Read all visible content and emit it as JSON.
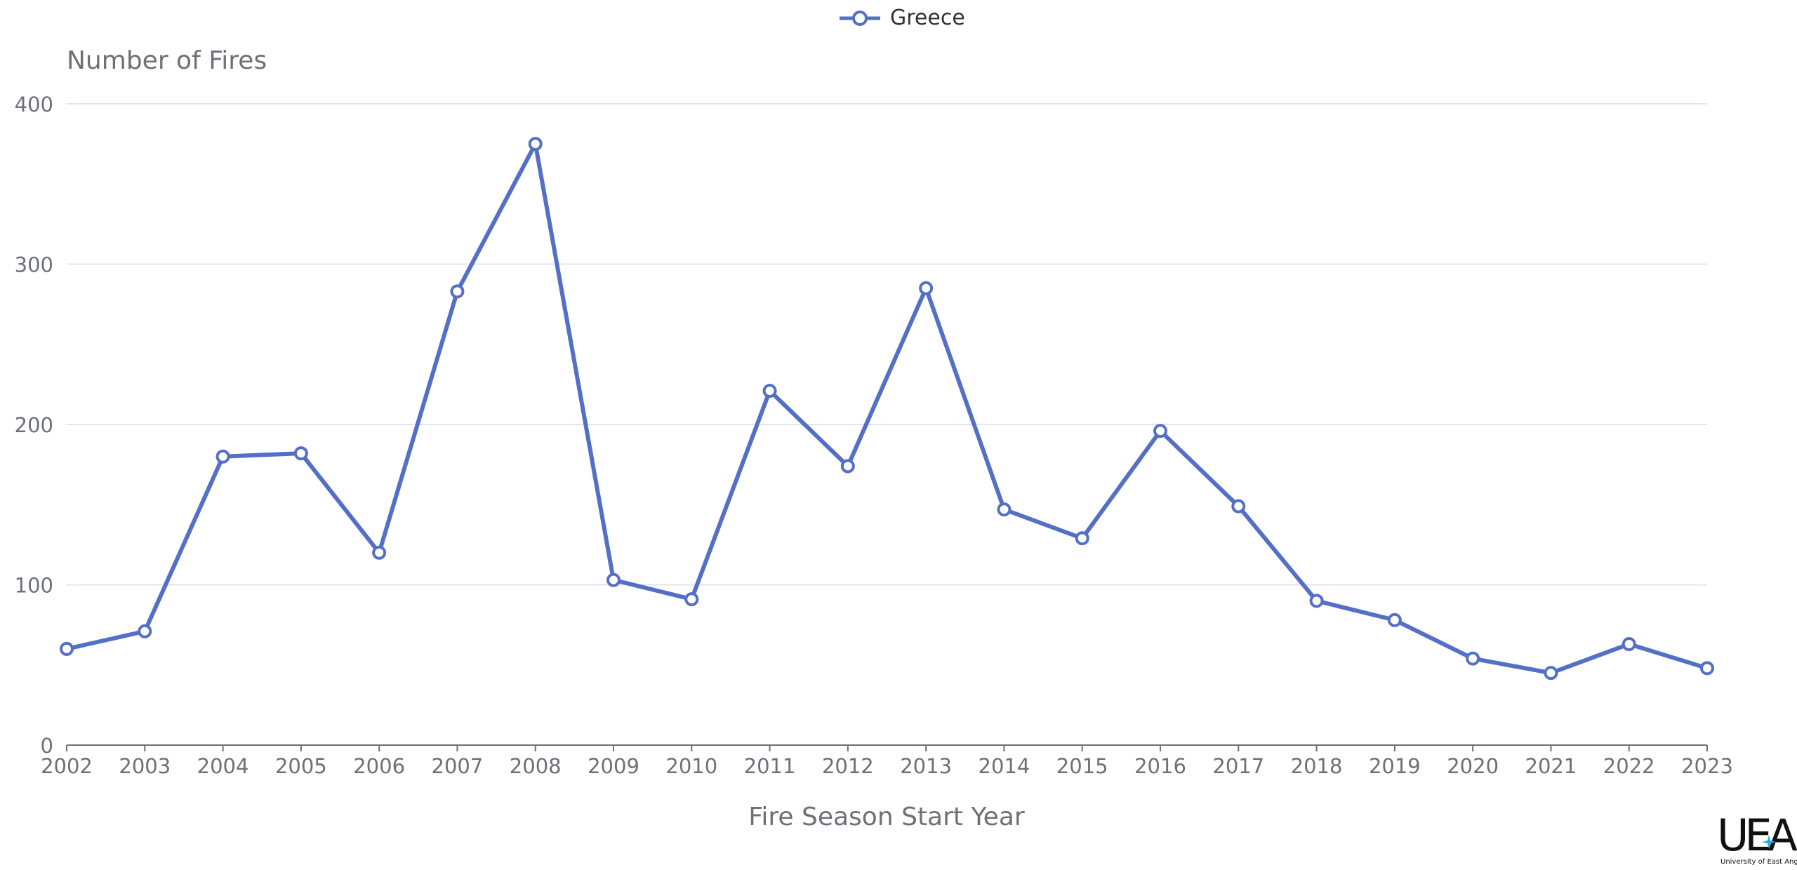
{
  "chart_data": {
    "type": "line",
    "title": "",
    "xlabel": "Fire Season Start Year",
    "ylabel": "Number of Fires",
    "ylim": [
      0,
      400
    ],
    "y_ticks": [
      "0",
      "100",
      "200",
      "300",
      "400"
    ],
    "grid": true,
    "legend_position": "top-center",
    "categories": [
      "2002",
      "2003",
      "2004",
      "2005",
      "2006",
      "2007",
      "2008",
      "2009",
      "2010",
      "2011",
      "2012",
      "2013",
      "2014",
      "2015",
      "2016",
      "2017",
      "2018",
      "2019",
      "2020",
      "2021",
      "2022",
      "2023"
    ],
    "series": [
      {
        "name": "Greece",
        "color": "#5470c6",
        "values": [
          60,
          71,
          180,
          182,
          120,
          283,
          375,
          103,
          91,
          221,
          174,
          285,
          147,
          129,
          196,
          149,
          90,
          78,
          54,
          45,
          63,
          48
        ]
      }
    ]
  },
  "logo": {
    "mark": "UEA",
    "text": "University of East Anglia"
  },
  "colors": {
    "axis": "#6e7079",
    "grid": "#e0e6f1",
    "text": "#6e7079",
    "series": "#5470c6"
  }
}
